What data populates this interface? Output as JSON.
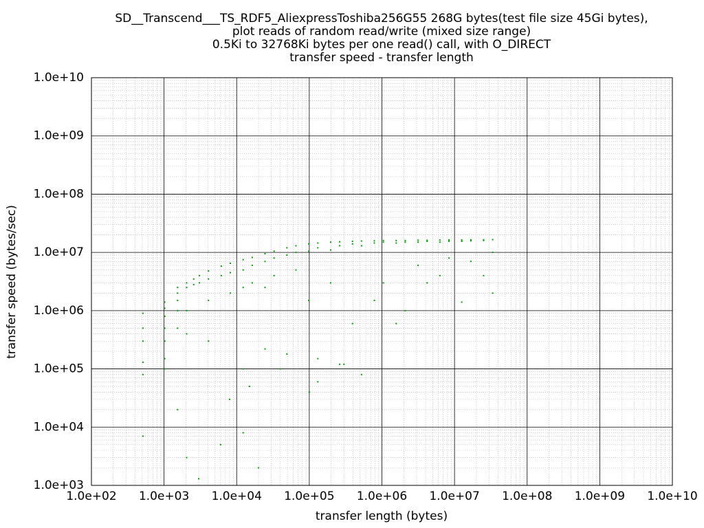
{
  "chart_data": {
    "type": "scatter",
    "title": [
      "SD__Transcend___TS_RDF5_AliexpressToshiba256G55 268G bytes(test file size 45Gi bytes),",
      "plot reads of random read/write (mixed size range)",
      "0.5Ki to 32768Ki bytes per one read() call, with O_DIRECT",
      "transfer speed - transfer length"
    ],
    "xlabel": "transfer length (bytes)",
    "ylabel": "transfer speed (bytes/sec)",
    "xscale": "log",
    "yscale": "log",
    "grid": true,
    "minor_grid": true,
    "color": "#00a000",
    "xlim": [
      100,
      10000000000
    ],
    "ylim": [
      1000,
      10000000000
    ],
    "xticks": [
      {
        "value": 100,
        "label": "1.0e+02"
      },
      {
        "value": 1000,
        "label": "1.0e+03"
      },
      {
        "value": 10000,
        "label": "1.0e+04"
      },
      {
        "value": 100000,
        "label": "1.0e+05"
      },
      {
        "value": 1000000,
        "label": "1.0e+06"
      },
      {
        "value": 10000000,
        "label": "1.0e+07"
      },
      {
        "value": 100000000,
        "label": "1.0e+08"
      },
      {
        "value": 1000000000,
        "label": "1.0e+09"
      },
      {
        "value": 10000000000,
        "label": "1.0e+10"
      }
    ],
    "yticks": [
      {
        "value": 1000,
        "label": "1.0e+03"
      },
      {
        "value": 10000,
        "label": "1.0e+04"
      },
      {
        "value": 100000,
        "label": "1.0e+05"
      },
      {
        "value": 1000000,
        "label": "1.0e+06"
      },
      {
        "value": 10000000,
        "label": "1.0e+07"
      },
      {
        "value": 100000000,
        "label": "1.0e+08"
      },
      {
        "value": 1000000000,
        "label": "1.0e+09"
      },
      {
        "value": 10000000000,
        "label": "1.0e+10"
      }
    ],
    "x": [
      512,
      512,
      512,
      512,
      512,
      512,
      1024,
      1024,
      1024,
      1024,
      1024,
      1024,
      1024,
      1536,
      1536,
      1536,
      1536,
      1536,
      1536,
      2048,
      2048,
      2048,
      2048,
      2048,
      2560,
      2560,
      3072,
      3072,
      4096,
      4096,
      4096,
      4096,
      6144,
      6144,
      8192,
      8192,
      8192,
      12288,
      12288,
      12288,
      12288,
      12288,
      16384,
      16384,
      16384,
      24576,
      24576,
      24576,
      24576,
      32768,
      32768,
      32768,
      49152,
      49152,
      49152,
      65536,
      65536,
      65536,
      98304,
      98304,
      98304,
      131072,
      131072,
      131072,
      131072,
      196608,
      196608,
      196608,
      262144,
      262144,
      262144,
      393216,
      393216,
      393216,
      524288,
      524288,
      524288,
      786432,
      786432,
      786432,
      1048576,
      1048576,
      1048576,
      1572864,
      1572864,
      1572864,
      2097152,
      2097152,
      2097152,
      3145728,
      3145728,
      3145728,
      4194304,
      4194304,
      4194304,
      6291456,
      6291456,
      6291456,
      8388608,
      8388608,
      8388608,
      12582912,
      12582912,
      12582912,
      16777216,
      16777216,
      16777216,
      25165824,
      25165824,
      25165824,
      33554432,
      33554432,
      33554432,
      3000,
      6000,
      20000,
      15000,
      8000,
      40000,
      100000,
      300000
    ],
    "values": [
      900000,
      500000,
      300000,
      130000,
      80000,
      7000,
      1400000,
      1100000,
      800000,
      500000,
      300000,
      150000,
      100000,
      2500000,
      2000000,
      1500000,
      1000000,
      500000,
      20000,
      3000000,
      2500000,
      1000000,
      400000,
      3000,
      3500000,
      2800000,
      4000000,
      3000000,
      4800000,
      3500000,
      1500000,
      300000,
      5800000,
      4000000,
      6500000,
      4500000,
      2000000,
      7500000,
      5000000,
      2500000,
      100000,
      8000,
      8200000,
      6000000,
      3000000,
      9500000,
      7000000,
      2500000,
      220000,
      10500000,
      8000000,
      4000000,
      12000000,
      9000000,
      180000,
      13000000,
      10000000,
      5000000,
      14000000,
      10500000,
      1500000,
      14500000,
      12000000,
      60000,
      150000,
      15000000,
      11000000,
      3000000,
      15200000,
      13000000,
      120000,
      15500000,
      14000000,
      600000,
      15700000,
      13000000,
      80000,
      15800000,
      14500000,
      1500000,
      16000000,
      15000000,
      3000000,
      16000000,
      14500000,
      600000,
      16000000,
      15000000,
      1000000,
      16200000,
      15000000,
      6000000,
      16200000,
      15500000,
      3000000,
      16300000,
      15000000,
      4000000,
      16400000,
      15500000,
      8000000,
      16400000,
      15500000,
      1400000,
      16500000,
      15800000,
      7000000,
      16500000,
      16000000,
      4000000,
      16600000,
      10000000,
      2000000,
      1300,
      5000,
      2000,
      50000,
      30000,
      100000,
      40000,
      120000
    ]
  }
}
